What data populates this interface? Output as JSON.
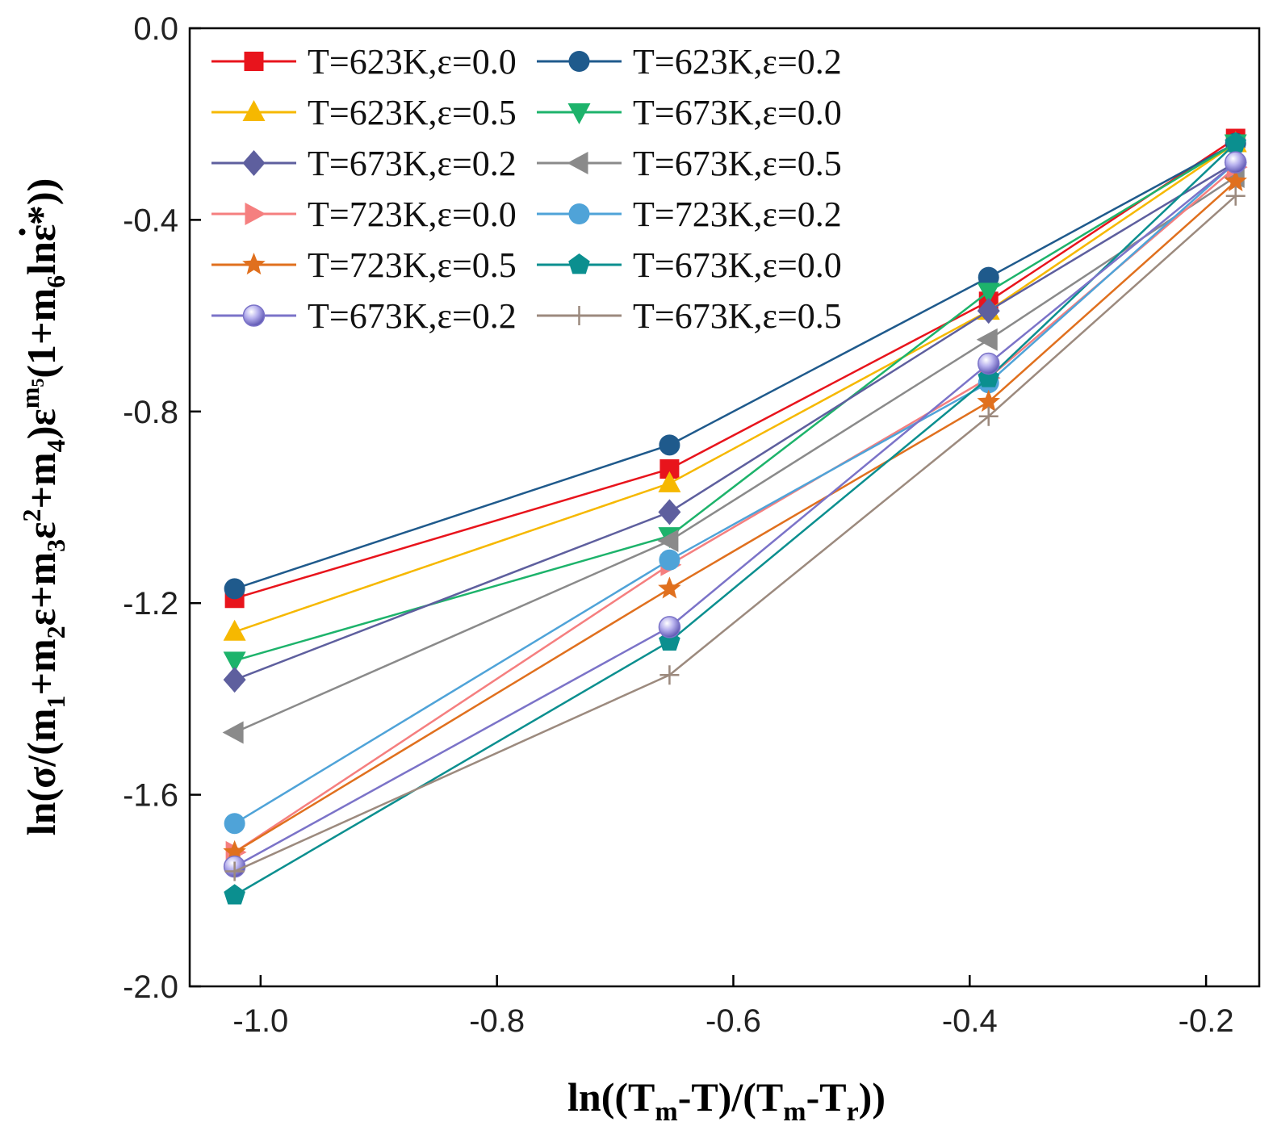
{
  "chart_data": {
    "type": "line",
    "title": "",
    "xlabel": "ln((Tm-T)/(Tm-Tr))",
    "xlabel_parts": {
      "a": "ln((T",
      "sub1": "m",
      "b": "-T)/(T",
      "sub2": "m",
      "c": "-T",
      "sub3": "r",
      "d": "))"
    },
    "ylabel": "ln(σ/(m1+m2ε+m3ε2+m4)εm5(1+m6lnε*))",
    "ylabel_parts": {
      "a": "ln(σ/(m",
      "s1": "1",
      "b": "+m",
      "s2": "2",
      "c": "ε+m",
      "s3": "3",
      "d": "ε",
      "p2": "2",
      "e": "+m",
      "s4": "4",
      "f": ")ε",
      "pm": "m",
      "pm5": "5",
      "g": "(1+m",
      "s6": "6",
      "h": "lnε",
      "dot": "·",
      "i": "*))"
    },
    "xlim": [
      -1.06,
      -0.155
    ],
    "ylim": [
      -2.0,
      0.0
    ],
    "xticks": [
      -1.0,
      -0.8,
      -0.6,
      -0.4,
      -0.2
    ],
    "xtick_labels": [
      "-1.0",
      "-0.8",
      "-0.6",
      "-0.4",
      "-0.2"
    ],
    "yticks": [
      -2.0,
      -1.6,
      -1.2,
      -0.8,
      -0.4,
      0.0
    ],
    "ytick_labels": [
      "-2.0",
      "-1.6",
      "-1.2",
      "-0.8",
      "-0.4",
      "0.0"
    ],
    "grid": false,
    "legend_position": "top-left",
    "x": [
      -1.022,
      -0.654,
      -0.384,
      -0.175
    ],
    "series": [
      {
        "name": "T=623K,ε=0.0",
        "color": "#e8141c",
        "marker": "square",
        "values": [
          -1.19,
          -0.92,
          -0.57,
          -0.23
        ]
      },
      {
        "name": "T=623K,ε=0.2",
        "color": "#1f5a8c",
        "marker": "circle",
        "values": [
          -1.17,
          -0.87,
          -0.52,
          -0.24
        ]
      },
      {
        "name": "T=623K,ε=0.5",
        "color": "#f6b800",
        "marker": "triangle-up",
        "values": [
          -1.26,
          -0.95,
          -0.59,
          -0.24
        ]
      },
      {
        "name": "T=673K,ε=0.0",
        "color": "#1db36b",
        "marker": "triangle-down",
        "values": [
          -1.32,
          -1.06,
          -0.55,
          -0.24
        ]
      },
      {
        "name": "T=673K,ε=0.2",
        "color": "#5e5f9e",
        "marker": "diamond",
        "values": [
          -1.36,
          -1.01,
          -0.59,
          -0.28
        ]
      },
      {
        "name": "T=673K,ε=0.5",
        "color": "#8a8a8a",
        "marker": "triangle-left",
        "values": [
          -1.47,
          -1.07,
          -0.65,
          -0.31
        ]
      },
      {
        "name": "T=723K,ε=0.0",
        "color": "#f57f7f",
        "marker": "triangle-right",
        "values": [
          -1.72,
          -1.12,
          -0.73,
          -0.29
        ]
      },
      {
        "name": "T=723K,ε=0.2",
        "color": "#4fa3d8",
        "marker": "circle",
        "values": [
          -1.66,
          -1.11,
          -0.74,
          -0.28
        ]
      },
      {
        "name": "T=723K,ε=0.5",
        "color": "#e0701e",
        "marker": "star",
        "values": [
          -1.72,
          -1.17,
          -0.78,
          -0.32
        ]
      },
      {
        "name": "T=673K,ε=0.0",
        "color": "#0b8f8f",
        "marker": "pentagon",
        "values": [
          -1.81,
          -1.28,
          -0.73,
          -0.24
        ]
      },
      {
        "name": "T=673K,ε=0.2",
        "color": "#7b73c8",
        "marker": "sphere",
        "values": [
          -1.75,
          -1.25,
          -0.7,
          -0.28
        ]
      },
      {
        "name": "T=673K,ε=0.5",
        "color": "#9c8a7e",
        "marker": "plus",
        "values": [
          -1.76,
          -1.35,
          -0.81,
          -0.35
        ]
      }
    ]
  }
}
